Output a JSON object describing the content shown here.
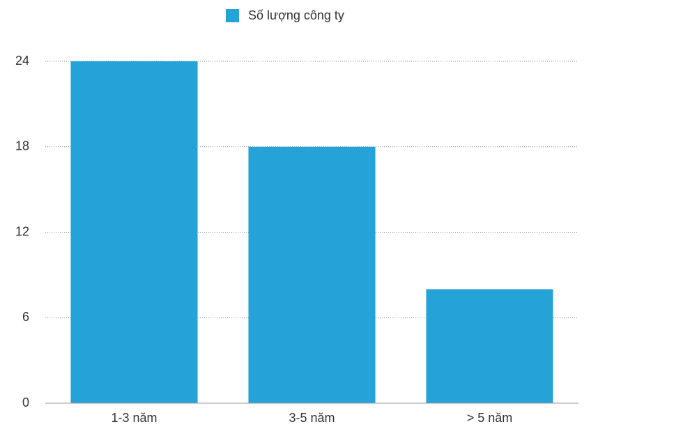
{
  "chart_data": {
    "type": "bar",
    "legend_label": "Số lượng công ty",
    "categories": [
      "1-3 năm",
      "3-5 năm",
      "> 5 năm"
    ],
    "values": [
      24,
      18,
      8
    ],
    "color": "#25a3d9",
    "ylim": [
      0,
      24
    ],
    "yticks": [
      0,
      6,
      12,
      18,
      24
    ],
    "grid": true
  }
}
